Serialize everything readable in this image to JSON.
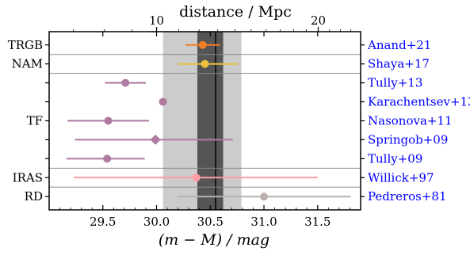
{
  "chart_data": {
    "type": "scatter",
    "title": "",
    "xlabel": "(m − M) / mag",
    "x2label": "distance / Mpc",
    "xlim": [
      29.0,
      31.9
    ],
    "xticks": [
      {
        "value": 29.5,
        "label": "29.5"
      },
      {
        "value": 30.0,
        "label": "30.0"
      },
      {
        "value": 30.5,
        "label": "30.5"
      },
      {
        "value": 31.0,
        "label": "31.0"
      },
      {
        "value": 31.5,
        "label": "31.5"
      }
    ],
    "x2ticks": [
      {
        "value": 10,
        "label": "10"
      },
      {
        "value": 20,
        "label": "20"
      }
    ],
    "grid": false,
    "bands": [
      {
        "name": "outer",
        "x": [
          30.06,
          30.79
        ],
        "color": "#cccccc"
      },
      {
        "name": "inner",
        "x": [
          30.38,
          30.62
        ],
        "color": "#555555"
      }
    ],
    "reference_line": {
      "x": 30.55,
      "color": "#000000"
    },
    "group_labels": [
      {
        "label": "TRGB",
        "rows": [
          0,
          0
        ]
      },
      {
        "label": "NAM",
        "rows": [
          1,
          1
        ]
      },
      {
        "label": "TF",
        "rows": [
          2,
          6
        ]
      },
      {
        "label": "IRAS",
        "rows": [
          7,
          7
        ]
      },
      {
        "label": "RD",
        "rows": [
          8,
          8
        ]
      }
    ],
    "separators_after_rows": [
      0,
      1,
      6,
      7
    ],
    "points": [
      {
        "label": "Anand+21",
        "x": 30.43,
        "xerr_low": 0.16,
        "xerr_high": 0.16,
        "marker": "circle",
        "color": "#f07e26"
      },
      {
        "label": "Shaya+17",
        "x": 30.45,
        "xerr_low": 0.25,
        "xerr_high": 0.31,
        "marker": "circle",
        "color": "#e9c03c"
      },
      {
        "label": "Tully+13",
        "x": 29.71,
        "xerr_low": 0.19,
        "xerr_high": 0.19,
        "marker": "circle",
        "color": "#b07aa1"
      },
      {
        "label": "Karachentsev+13",
        "x": 30.06,
        "xerr_low": 0.0,
        "xerr_high": 0.0,
        "marker": "circle",
        "color": "#b07aa1"
      },
      {
        "label": "Nasonova+11",
        "x": 29.55,
        "xerr_low": 0.38,
        "xerr_high": 0.38,
        "marker": "circle",
        "color": "#b07aa1"
      },
      {
        "label": "Springob+09",
        "x": 29.99,
        "xerr_low": 0.75,
        "xerr_high": 0.72,
        "marker": "diamond",
        "color": "#b07aa1"
      },
      {
        "label": "Tully+09",
        "x": 29.54,
        "xerr_low": 0.38,
        "xerr_high": 0.35,
        "marker": "circle",
        "color": "#b07aa1"
      },
      {
        "label": "Willick+97",
        "x": 30.37,
        "xerr_low": 1.14,
        "xerr_high": 1.13,
        "marker": "circle",
        "color": "#ff9da7"
      },
      {
        "label": "Pedreros+81",
        "x": 31.0,
        "xerr_low": 0.81,
        "xerr_high": 0.81,
        "marker": "circle",
        "color": "#bab0ac"
      }
    ],
    "right_label_color": "#0000ff"
  }
}
